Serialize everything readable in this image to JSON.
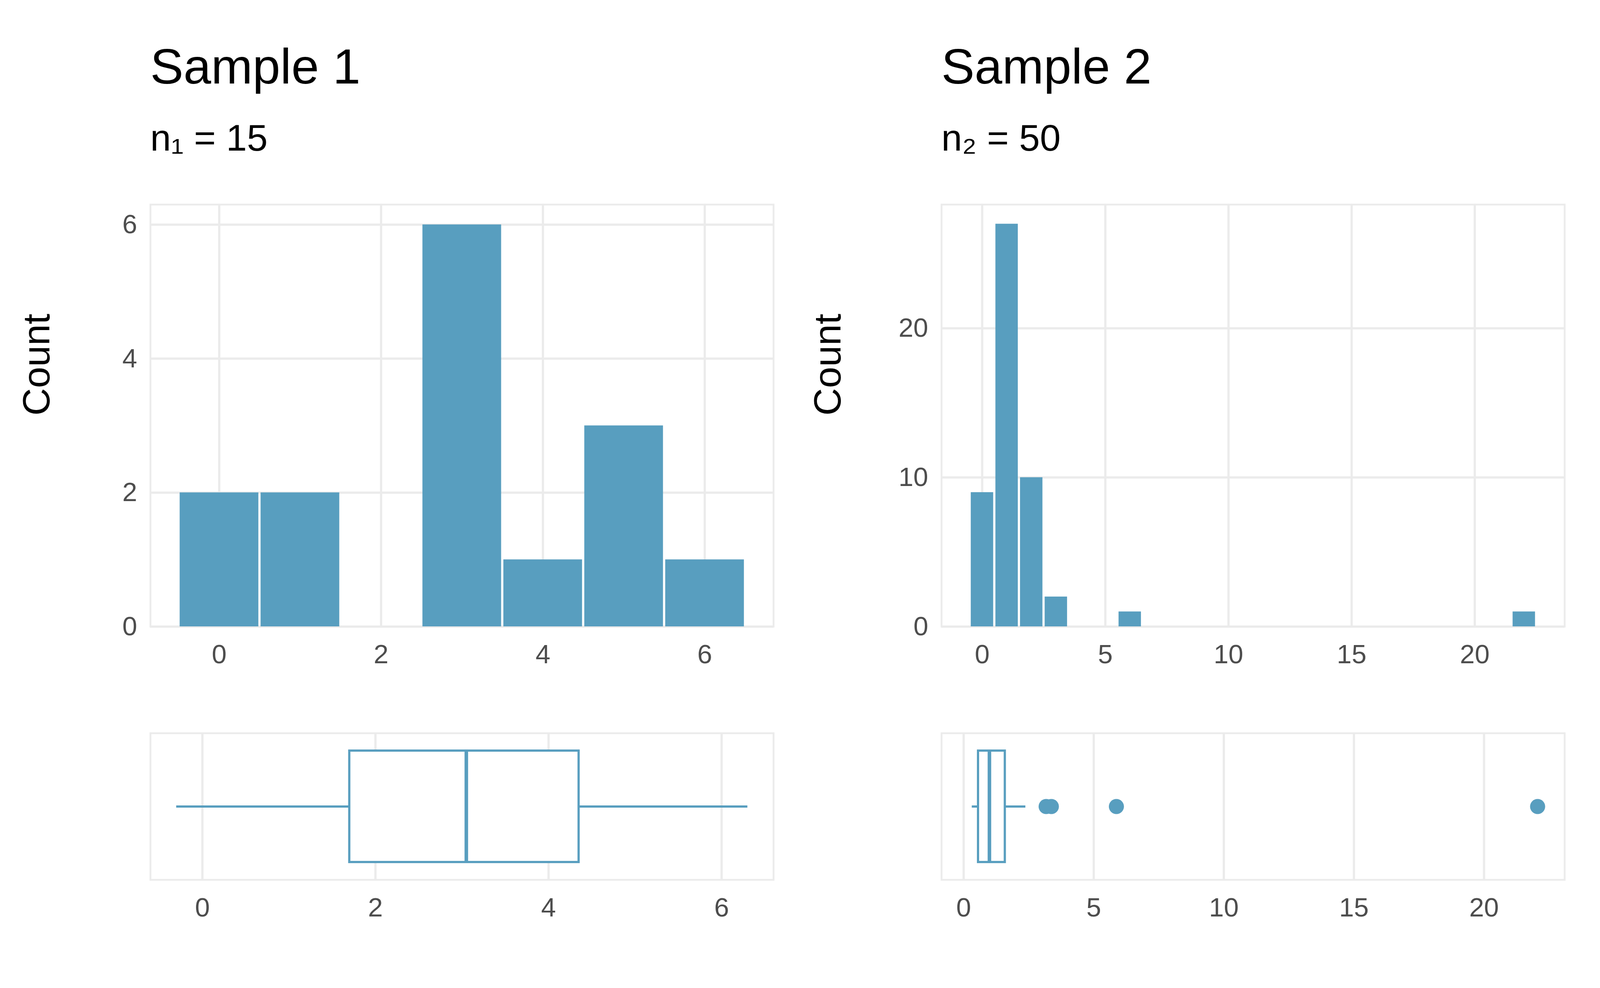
{
  "chart_data": [
    {
      "type": "histogram",
      "title": "Sample 1",
      "subtitle": "n₁ = 15",
      "y_label": "Count",
      "bins": [
        -0.5,
        0.5,
        1.5,
        2.5,
        3.5,
        4.5,
        5.5,
        6.5
      ],
      "counts": [
        2,
        2,
        0,
        6,
        1,
        3,
        1
      ],
      "color": "#589ebf",
      "xlim": [
        -0.85,
        6.85
      ],
      "xticks": [
        0,
        2,
        4,
        6
      ],
      "ylim": [
        0,
        6.3
      ],
      "yticks": [
        0,
        2,
        4,
        6
      ],
      "grid": true,
      "boxplot": {
        "min": -0.3,
        "q1": 1.7,
        "median": 3.05,
        "q3": 4.35,
        "max": 6.3,
        "xlim": [
          -0.6,
          6.6
        ],
        "xticks": [
          0,
          2,
          4,
          6
        ]
      }
    },
    {
      "type": "histogram",
      "title": "Sample 2",
      "subtitle": "n₂ = 50",
      "y_label": "Count",
      "bins": [
        -0.5,
        0.5,
        1.5,
        2.5,
        3.5,
        4.5,
        5.5,
        6.5,
        7.5,
        8.5,
        9.5,
        10.5,
        11.5,
        12.5,
        13.5,
        14.5,
        15.5,
        16.5,
        17.5,
        18.5,
        19.5,
        20.5,
        21.5,
        22.5
      ],
      "counts": [
        9,
        27,
        10,
        2,
        0,
        0,
        1,
        0,
        0,
        0,
        0,
        0,
        0,
        0,
        0,
        0,
        0,
        0,
        0,
        0,
        0,
        0,
        1
      ],
      "color": "#589ebf",
      "xlim": [
        -1.65,
        23.65
      ],
      "xticks": [
        0,
        5,
        10,
        15,
        20
      ],
      "ylim": [
        0,
        28.3
      ],
      "yticks": [
        0,
        10,
        20
      ],
      "grid": true,
      "boxplot": {
        "min": 0.32,
        "q1": 0.56,
        "median": 0.99,
        "q3": 1.59,
        "max": 2.38,
        "outliers": [
          3.17,
          3.37,
          5.87,
          22.06
        ],
        "xlim": [
          -0.85,
          23.1
        ],
        "xticks": [
          0,
          5,
          10,
          15,
          20
        ]
      }
    }
  ]
}
